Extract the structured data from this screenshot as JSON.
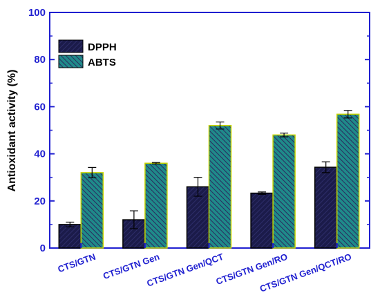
{
  "chart_data": {
    "type": "bar",
    "title": "",
    "xlabel": "",
    "ylabel": "Antioxidant activity (%)",
    "ylim": [
      0,
      100
    ],
    "yticks": [
      0,
      20,
      40,
      60,
      80,
      100
    ],
    "categories": [
      "CTS/GTN",
      "CTS/GTN Gen",
      "CTS/GTN Gen/QCT",
      "CTS/GTN Gen/RO",
      "CTS/GTN Gen/QCT/RO"
    ],
    "series": [
      {
        "name": "DPPH",
        "values": [
          10.0,
          12.0,
          26.0,
          23.3,
          34.3
        ],
        "errors": [
          1.0,
          3.8,
          4.0,
          0.5,
          2.3
        ],
        "color": "#1b1b4a"
      },
      {
        "name": "ABTS",
        "values": [
          32.0,
          36.0,
          52.0,
          48.0,
          56.8
        ],
        "errors": [
          2.2,
          0.3,
          1.5,
          0.8,
          1.6
        ],
        "color": "#1f8a8a"
      }
    ],
    "legend": "top-left",
    "grid": false,
    "axis_color": "#1f1fd0"
  }
}
